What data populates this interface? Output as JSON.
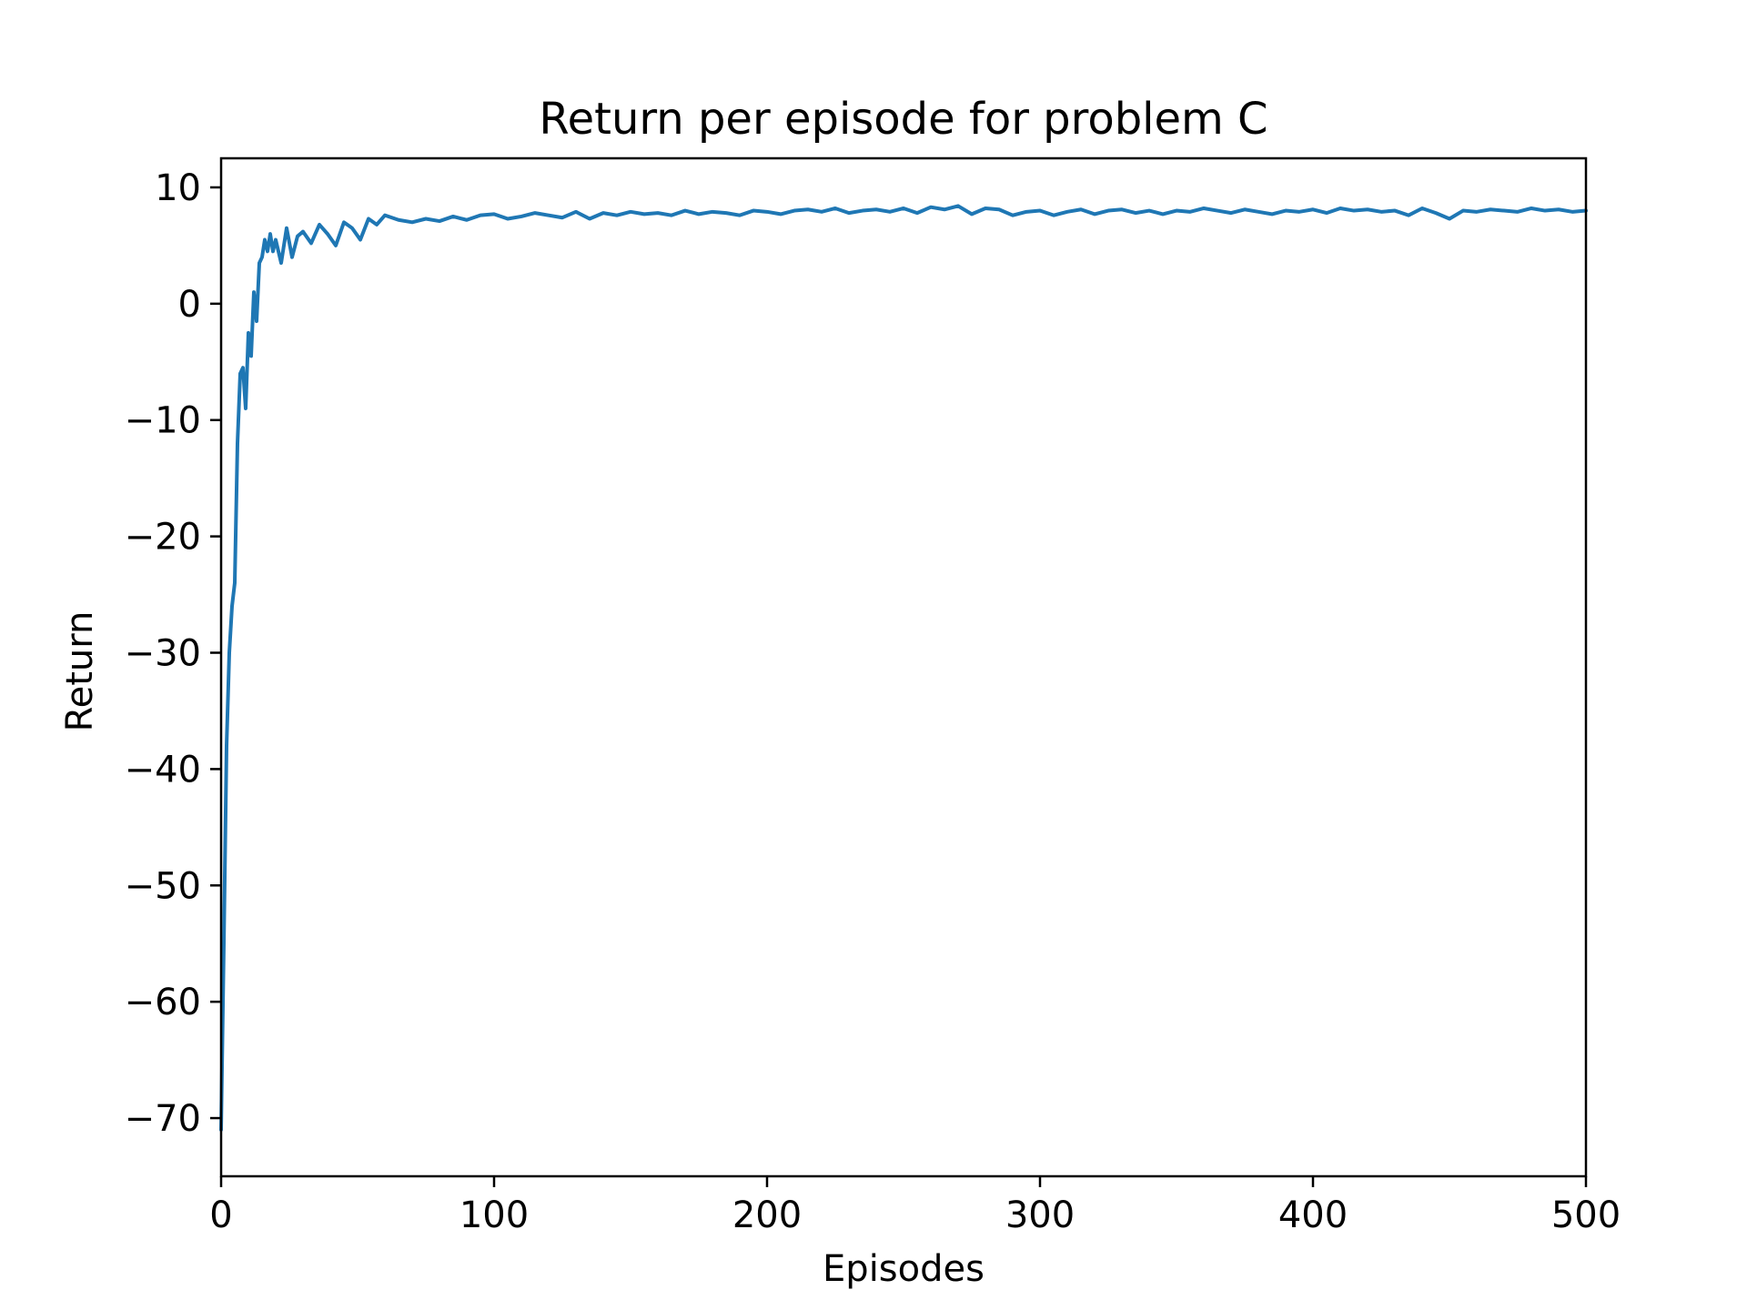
{
  "chart_data": {
    "type": "line",
    "title": "Return per episode for problem C",
    "xlabel": "Episodes",
    "ylabel": "Return",
    "xlim": [
      0,
      500
    ],
    "ylim": [
      -75,
      12.5
    ],
    "xticks": [
      0,
      100,
      200,
      300,
      400,
      500
    ],
    "yticks": [
      10,
      0,
      -10,
      -20,
      -30,
      -40,
      -50,
      -60,
      -70
    ],
    "xtick_labels": [
      "0",
      "100",
      "200",
      "300",
      "400",
      "500"
    ],
    "ytick_labels": [
      "10",
      "0",
      "−10",
      "−20",
      "−30",
      "−40",
      "−50",
      "−60",
      "−70"
    ],
    "grid": false,
    "series": [
      {
        "color": "#1f77b4",
        "x": [
          0,
          1,
          2,
          3,
          4,
          5,
          6,
          7,
          8,
          9,
          10,
          11,
          12,
          13,
          14,
          15,
          16,
          17,
          18,
          19,
          20,
          22,
          24,
          26,
          28,
          30,
          33,
          36,
          39,
          42,
          45,
          48,
          51,
          54,
          57,
          60,
          65,
          70,
          75,
          80,
          85,
          90,
          95,
          100,
          105,
          110,
          115,
          120,
          125,
          130,
          135,
          140,
          145,
          150,
          155,
          160,
          165,
          170,
          175,
          180,
          185,
          190,
          195,
          200,
          205,
          210,
          215,
          220,
          225,
          230,
          235,
          240,
          245,
          250,
          255,
          260,
          265,
          270,
          275,
          280,
          285,
          290,
          295,
          300,
          305,
          310,
          315,
          320,
          325,
          330,
          335,
          340,
          345,
          350,
          355,
          360,
          365,
          370,
          375,
          380,
          385,
          390,
          395,
          400,
          405,
          410,
          415,
          420,
          425,
          430,
          435,
          440,
          445,
          450,
          455,
          460,
          465,
          470,
          475,
          480,
          485,
          490,
          495,
          500
        ],
        "y": [
          -71,
          -55,
          -38,
          -30,
          -26,
          -24,
          -12,
          -6,
          -5.5,
          -9,
          -2.5,
          -4.5,
          1,
          -1.5,
          3.5,
          4,
          5.5,
          4.5,
          6,
          4.5,
          5.5,
          3.5,
          6.5,
          4,
          5.8,
          6.2,
          5.2,
          6.8,
          6,
          5,
          7,
          6.5,
          5.5,
          7.3,
          6.8,
          7.6,
          7.2,
          7,
          7.3,
          7.1,
          7.5,
          7.2,
          7.6,
          7.7,
          7.3,
          7.5,
          7.8,
          7.6,
          7.4,
          7.9,
          7.3,
          7.8,
          7.6,
          7.9,
          7.7,
          7.8,
          7.6,
          8,
          7.7,
          7.9,
          7.8,
          7.6,
          8,
          7.9,
          7.7,
          8,
          8.1,
          7.9,
          8.2,
          7.8,
          8,
          8.1,
          7.9,
          8.2,
          7.8,
          8.3,
          8.1,
          8.4,
          7.7,
          8.2,
          8.1,
          7.6,
          7.9,
          8,
          7.6,
          7.9,
          8.1,
          7.7,
          8,
          8.1,
          7.8,
          8,
          7.7,
          8,
          7.9,
          8.2,
          8,
          7.8,
          8.1,
          7.9,
          7.7,
          8,
          7.9,
          8.1,
          7.8,
          8.2,
          8,
          8.1,
          7.9,
          8,
          7.6,
          8.2,
          7.8,
          7.3,
          8,
          7.9,
          8.1,
          8,
          7.9,
          8.2,
          8,
          8.1,
          7.9,
          8
        ]
      }
    ]
  }
}
